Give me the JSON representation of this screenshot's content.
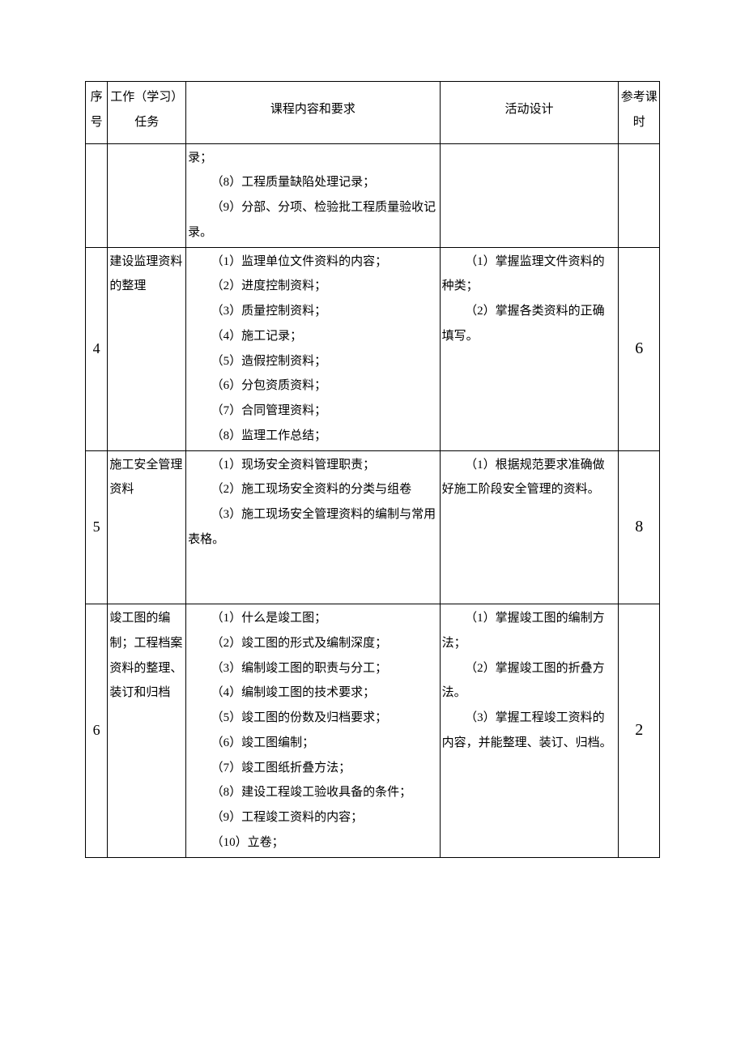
{
  "table": {
    "headers": {
      "num": "序号",
      "task": "工作（学习）任务",
      "req": "课程内容和要求",
      "act": "活动设计",
      "hrs": "参考课时"
    },
    "rows": [
      {
        "num": "",
        "task": "",
        "req_lines": [
          {
            "text": "录；",
            "indent": false
          },
          {
            "text": "（8）工程质量缺陷处理记录；",
            "indent": true
          },
          {
            "text": "（9）分部、分项、检验批工程质量验收记录。",
            "indent": true,
            "hang": true
          }
        ],
        "act_lines": [],
        "hrs": ""
      },
      {
        "num": "4",
        "task": "建设监理资料的整理",
        "req_lines": [
          {
            "text": "（1）监理单位文件资料的内容；",
            "indent": true
          },
          {
            "text": "（2）进度控制资料；",
            "indent": true
          },
          {
            "text": "（3）质量控制资料；",
            "indent": true
          },
          {
            "text": "（4）施工记录；",
            "indent": true
          },
          {
            "text": "（5）造假控制资料；",
            "indent": true
          },
          {
            "text": "（6）分包资质资料；",
            "indent": true
          },
          {
            "text": "（7）合同管理资料；",
            "indent": true
          },
          {
            "text": "（8）监理工作总结；",
            "indent": true
          }
        ],
        "act_lines": [
          {
            "text": "（1）掌握监理文件资料的种类；",
            "indent": true,
            "hang": true
          },
          {
            "text": "（2）掌握各类资料的正确填写。",
            "indent": true,
            "hang": true
          }
        ],
        "hrs": "6"
      },
      {
        "num": "5",
        "task": "施工安全管理资料",
        "req_lines": [
          {
            "text": "（1）现场安全资料管理职责；",
            "indent": true
          },
          {
            "text": "（2）施工现场安全资料的分类与组卷",
            "indent": true
          },
          {
            "text": "（3）施工现场安全管理资料的编制与常用表格。",
            "indent": true,
            "hang": true
          },
          {
            "text": " ",
            "indent": false
          },
          {
            "text": " ",
            "indent": false
          }
        ],
        "act_lines": [
          {
            "text": "（1）根据规范要求准确做好施工阶段安全管理的资料。",
            "indent": true,
            "hang": true
          }
        ],
        "hrs": "8"
      },
      {
        "num": "6",
        "task": "竣工图的编制；工程档案资料的整理、装订和归档",
        "req_lines": [
          {
            "text": "（1）什么是竣工图；",
            "indent": true
          },
          {
            "text": "（2）竣工图的形式及编制深度；",
            "indent": true
          },
          {
            "text": "（3）编制竣工图的职责与分工；",
            "indent": true
          },
          {
            "text": "（4）编制竣工图的技术要求；",
            "indent": true
          },
          {
            "text": "（5）竣工图的份数及归档要求；",
            "indent": true
          },
          {
            "text": "（6）竣工图编制；",
            "indent": true
          },
          {
            "text": "（7）竣工图纸折叠方法；",
            "indent": true
          },
          {
            "text": "（8）建设工程竣工验收具备的条件；",
            "indent": true,
            "hang": true
          },
          {
            "text": "（9）工程竣工资料的内容；",
            "indent": true
          },
          {
            "text": "（10）立卷；",
            "indent": true
          }
        ],
        "act_lines": [
          {
            "text": "（1）掌握竣工图的编制方法；",
            "indent": true,
            "hang": true
          },
          {
            "text": "（2）掌握竣工图的折叠方法。",
            "indent": true,
            "hang": true
          },
          {
            "text": "（3）掌握工程竣工资料的内容，并能整理、装订、归档。",
            "indent": true,
            "hang": true
          }
        ],
        "hrs": "2"
      }
    ]
  }
}
